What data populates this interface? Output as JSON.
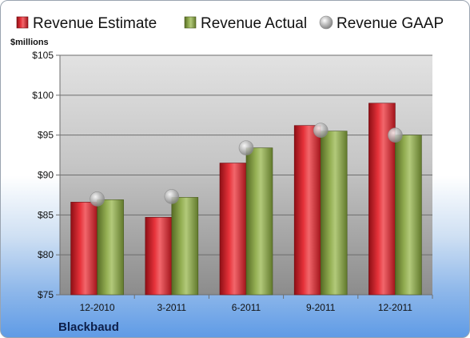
{
  "chart_data": {
    "type": "bar",
    "company": "Blackbaud",
    "ylabel": "$millions",
    "categories": [
      "12-2010",
      "3-2011",
      "6-2011",
      "9-2011",
      "12-2011"
    ],
    "series": [
      {
        "name": "Revenue Estimate",
        "type": "bar",
        "color": "#cc1f27",
        "values": [
          86.6,
          84.7,
          91.5,
          96.2,
          99.0
        ]
      },
      {
        "name": "Revenue Actual",
        "type": "bar",
        "color": "#7f9a3e",
        "values": [
          86.9,
          87.2,
          93.4,
          95.5,
          95.0
        ]
      },
      {
        "name": "Revenue GAAP",
        "type": "marker",
        "color": "#b4b4b4",
        "values": [
          87.0,
          87.3,
          93.4,
          95.6,
          95.0
        ]
      }
    ],
    "yticks": [
      "$75",
      "$80",
      "$85",
      "$90",
      "$95",
      "$100",
      "$105"
    ],
    "ylim": [
      75,
      105
    ],
    "grid": true,
    "legend": "top"
  }
}
